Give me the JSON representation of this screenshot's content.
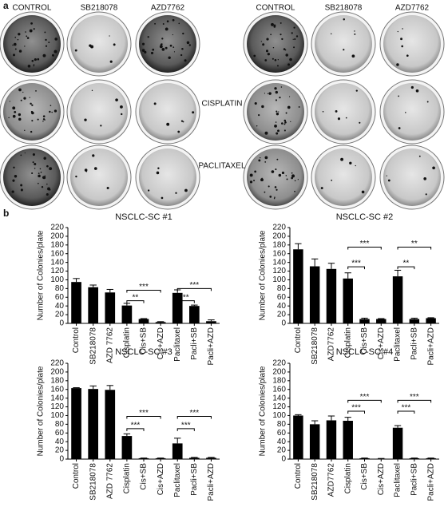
{
  "panel_a": {
    "label": "a",
    "column_labels": [
      "CONTROL",
      "SB218078",
      "AZD7762",
      "CONTROL",
      "SB218078",
      "AZD7762"
    ],
    "row_labels": [
      "CISPLATIN",
      "PACLITAXEL"
    ]
  },
  "panel_b": {
    "label": "b"
  },
  "chart_data": [
    {
      "type": "bar",
      "title": "NSCLC-SC #1",
      "ylabel": "Number of Colonies/plate",
      "color": "#000000",
      "categories": [
        "Control",
        "SB218078",
        "AZD 7762",
        "Cisplatin",
        "Cis+SB",
        "Cis+AZD",
        "Paclitaxel",
        "Pacli+SB",
        "Pacli+AZD"
      ],
      "values": [
        95,
        83,
        71,
        41,
        10,
        3,
        70,
        40,
        5
      ],
      "errors": [
        8,
        5,
        7,
        5,
        1,
        1,
        7,
        2,
        3
      ],
      "ylim": [
        0,
        220
      ],
      "yticks": [
        0,
        20,
        40,
        60,
        80,
        100,
        120,
        140,
        160,
        180,
        200,
        220
      ],
      "annotations": [
        {
          "from": 3,
          "to": 4,
          "y": 52,
          "label": "**"
        },
        {
          "from": 3,
          "to": 5,
          "y": 76,
          "label": "***"
        },
        {
          "from": 6,
          "to": 7,
          "y": 52,
          "label": "**"
        },
        {
          "from": 6,
          "to": 8,
          "y": 80,
          "label": "***"
        }
      ]
    },
    {
      "type": "bar",
      "title": "NSCLC-SC #2",
      "ylabel": "Number of Colonies/plate",
      "color": "#000000",
      "categories": [
        "Control",
        "SB218078",
        "AZD7762",
        "Cisplatin",
        "Cis+SB",
        "Cis+AZD",
        "Paclitaxel",
        "Pacli+SB",
        "Pacli+AZD"
      ],
      "values": [
        170,
        131,
        125,
        103,
        10,
        10,
        108,
        10,
        12
      ],
      "errors": [
        13,
        17,
        13,
        13,
        2,
        1,
        14,
        2,
        1
      ],
      "ylim": [
        0,
        220
      ],
      "yticks": [
        0,
        20,
        40,
        60,
        80,
        100,
        120,
        140,
        160,
        180,
        200,
        220
      ],
      "annotations": [
        {
          "from": 3,
          "to": 4,
          "y": 130,
          "label": "***"
        },
        {
          "from": 3,
          "to": 5,
          "y": 175,
          "label": "***"
        },
        {
          "from": 6,
          "to": 7,
          "y": 130,
          "label": "**"
        },
        {
          "from": 6,
          "to": 8,
          "y": 175,
          "label": "**"
        }
      ]
    },
    {
      "type": "bar",
      "title": "NSCLC-SC #3",
      "ylabel": "Number of Colonies/plate",
      "color": "#000000",
      "categories": [
        "Control",
        "SB218078",
        "AZD 7762",
        "Cisplatin",
        "Cis+SB",
        "Cis+AZD",
        "Paclitaxel",
        "Pacli+SB",
        "Pacli+AZD"
      ],
      "values": [
        163,
        161,
        159,
        53,
        2,
        2,
        36,
        3,
        3
      ],
      "errors": [
        1,
        7,
        10,
        5,
        0.5,
        0.5,
        12,
        1,
        1
      ],
      "ylim": [
        0,
        220
      ],
      "yticks": [
        0,
        20,
        40,
        60,
        80,
        100,
        120,
        140,
        160,
        180,
        200,
        220
      ],
      "annotations": [
        {
          "from": 3,
          "to": 4,
          "y": 70,
          "label": "***"
        },
        {
          "from": 3,
          "to": 5,
          "y": 98,
          "label": "***"
        },
        {
          "from": 6,
          "to": 7,
          "y": 70,
          "label": "***"
        },
        {
          "from": 6,
          "to": 8,
          "y": 98,
          "label": "***"
        }
      ]
    },
    {
      "type": "bar",
      "title": "NSCLC-SC #4",
      "ylabel": "Number of Colonies/plate",
      "color": "#000000",
      "categories": [
        "Control",
        "SB218078",
        "AZD7762",
        "Cisplatin",
        "Cis+SB",
        "Cis+AZD",
        "Paclitaxel",
        "Pacli+SB",
        "Pacli+AZD"
      ],
      "values": [
        100,
        80,
        89,
        88,
        2,
        1,
        72,
        2,
        2
      ],
      "errors": [
        2,
        8,
        10,
        8,
        0.5,
        0.5,
        5,
        0.5,
        0.5
      ],
      "ylim": [
        0,
        220
      ],
      "yticks": [
        0,
        20,
        40,
        60,
        80,
        100,
        120,
        140,
        160,
        180,
        200,
        220
      ],
      "annotations": [
        {
          "from": 3,
          "to": 4,
          "y": 110,
          "label": "***"
        },
        {
          "from": 3,
          "to": 5,
          "y": 135,
          "label": "***"
        },
        {
          "from": 6,
          "to": 7,
          "y": 110,
          "label": "***"
        },
        {
          "from": 6,
          "to": 8,
          "y": 135,
          "label": "***"
        }
      ]
    }
  ]
}
